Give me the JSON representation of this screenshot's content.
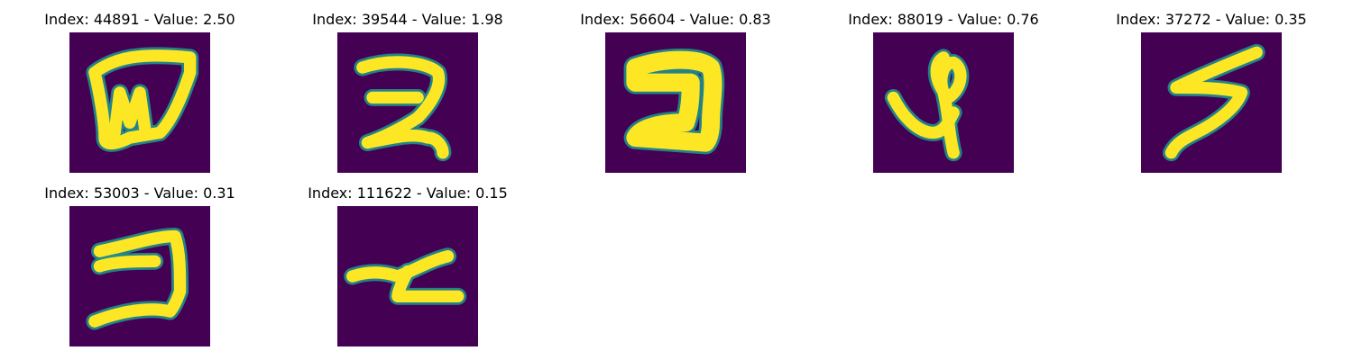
{
  "colors": {
    "background": "#440154",
    "stroke_mid": "#21908d",
    "stroke_core": "#fde725"
  },
  "panels": [
    {
      "title": "Index: 44891 - Value: 2.50"
    },
    {
      "title": "Index: 39544 - Value: 1.98"
    },
    {
      "title": "Index: 56604 - Value: 0.83"
    },
    {
      "title": "Index: 88019 - Value: 0.76"
    },
    {
      "title": "Index: 37272 - Value: 0.35"
    },
    {
      "title": "Index: 53003 - Value: 0.31"
    },
    {
      "title": "Index: 111622 - Value: 0.15"
    }
  ]
}
